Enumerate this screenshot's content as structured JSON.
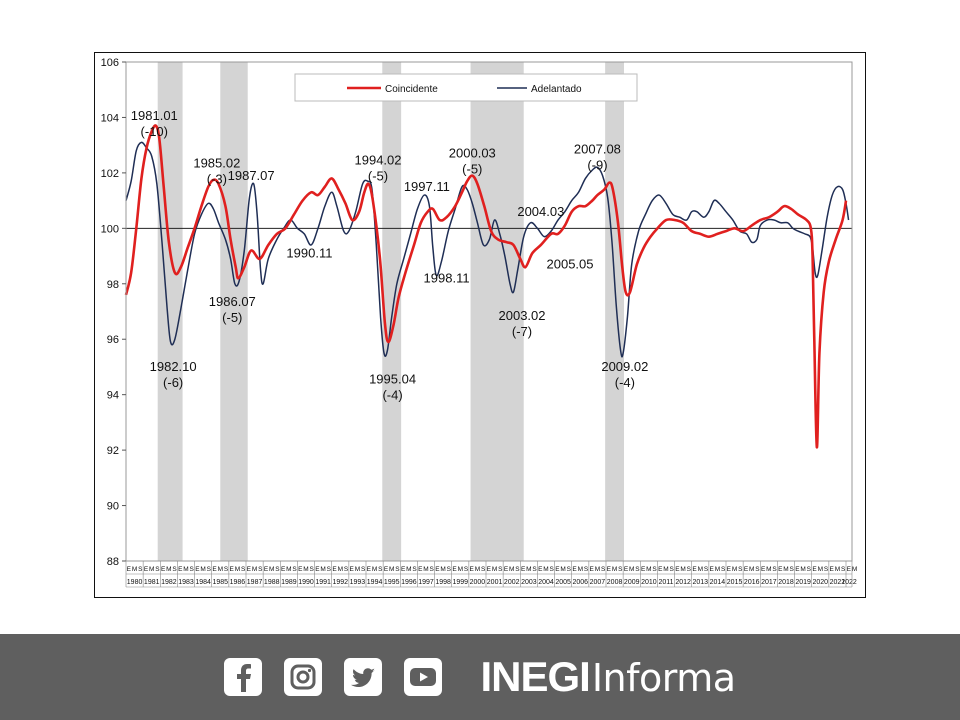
{
  "chart_data": {
    "type": "line",
    "ylim": [
      88,
      106
    ],
    "yticks": [
      88,
      90,
      92,
      94,
      96,
      98,
      100,
      102,
      104,
      106
    ],
    "baseline": 100,
    "x_years": [
      "1980",
      "1981",
      "1982",
      "1983",
      "1984",
      "1985",
      "1986",
      "1987",
      "1988",
      "1989",
      "1990",
      "1991",
      "1992",
      "1993",
      "1994",
      "1995",
      "1996",
      "1997",
      "1998",
      "1999",
      "2000",
      "2001",
      "2002",
      "2003",
      "2004",
      "2005",
      "2006",
      "2007",
      "2008",
      "2009",
      "2010",
      "2011",
      "2012",
      "2013",
      "2014",
      "2015",
      "2016",
      "2017",
      "2018",
      "2019",
      "2020",
      "2021",
      "2022"
    ],
    "x_subticks": [
      "E",
      "M",
      "S"
    ],
    "last_year_subticks": [
      "E",
      "M"
    ],
    "legend": {
      "position": "top-center"
    },
    "recession_bands": [
      {
        "start": 1981.85,
        "end": 1983.3
      },
      {
        "start": 1985.5,
        "end": 1987.1
      },
      {
        "start": 1994.95,
        "end": 1996.05
      },
      {
        "start": 2000.1,
        "end": 2003.2
      },
      {
        "start": 2007.95,
        "end": 2009.05
      }
    ],
    "series": [
      {
        "name": "Coincidente",
        "color": "#e0201f",
        "points": [
          [
            1980.0,
            97.6
          ],
          [
            1980.3,
            98.4
          ],
          [
            1980.6,
            100.0
          ],
          [
            1980.9,
            101.8
          ],
          [
            1981.2,
            102.9
          ],
          [
            1981.5,
            103.5
          ],
          [
            1981.75,
            103.7
          ],
          [
            1981.95,
            103.2
          ],
          [
            1982.2,
            101.5
          ],
          [
            1982.5,
            99.5
          ],
          [
            1982.85,
            98.4
          ],
          [
            1983.2,
            98.6
          ],
          [
            1983.6,
            99.3
          ],
          [
            1984.0,
            100.0
          ],
          [
            1984.4,
            100.8
          ],
          [
            1984.8,
            101.5
          ],
          [
            1985.1,
            101.75
          ],
          [
            1985.4,
            101.6
          ],
          [
            1985.8,
            100.8
          ],
          [
            1986.1,
            99.6
          ],
          [
            1986.4,
            98.6
          ],
          [
            1986.55,
            98.2
          ],
          [
            1986.9,
            98.6
          ],
          [
            1987.3,
            99.2
          ],
          [
            1987.8,
            98.9
          ],
          [
            1988.3,
            99.4
          ],
          [
            1988.8,
            99.8
          ],
          [
            1989.3,
            100.0
          ],
          [
            1989.8,
            100.5
          ],
          [
            1990.3,
            101.0
          ],
          [
            1990.8,
            101.3
          ],
          [
            1991.2,
            101.2
          ],
          [
            1991.6,
            101.5
          ],
          [
            1992.0,
            101.8
          ],
          [
            1992.4,
            101.4
          ],
          [
            1992.8,
            100.9
          ],
          [
            1993.2,
            100.3
          ],
          [
            1993.6,
            100.6
          ],
          [
            1993.9,
            101.3
          ],
          [
            1994.15,
            101.6
          ],
          [
            1994.4,
            101.0
          ],
          [
            1994.8,
            99.0
          ],
          [
            1995.1,
            96.6
          ],
          [
            1995.3,
            95.9
          ],
          [
            1995.6,
            96.5
          ],
          [
            1995.9,
            97.5
          ],
          [
            1996.3,
            98.4
          ],
          [
            1996.8,
            99.4
          ],
          [
            1997.2,
            100.2
          ],
          [
            1997.6,
            100.6
          ],
          [
            1997.9,
            100.7
          ],
          [
            1998.3,
            100.3
          ],
          [
            1998.7,
            100.4
          ],
          [
            1999.2,
            100.8
          ],
          [
            1999.6,
            101.3
          ],
          [
            1999.9,
            101.7
          ],
          [
            2000.2,
            101.9
          ],
          [
            2000.5,
            101.6
          ],
          [
            2000.9,
            100.8
          ],
          [
            2001.3,
            99.9
          ],
          [
            2001.7,
            99.6
          ],
          [
            2002.2,
            99.5
          ],
          [
            2002.6,
            99.4
          ],
          [
            2003.0,
            98.9
          ],
          [
            2003.3,
            98.6
          ],
          [
            2003.7,
            99.1
          ],
          [
            2004.2,
            99.4
          ],
          [
            2004.8,
            99.8
          ],
          [
            2005.2,
            99.8
          ],
          [
            2005.6,
            100.1
          ],
          [
            2006.0,
            100.6
          ],
          [
            2006.4,
            100.8
          ],
          [
            2006.8,
            100.8
          ],
          [
            2007.2,
            101.0
          ],
          [
            2007.5,
            101.2
          ],
          [
            2007.9,
            101.4
          ],
          [
            2008.2,
            101.65
          ],
          [
            2008.4,
            101.4
          ],
          [
            2008.7,
            100.2
          ],
          [
            2008.95,
            98.6
          ],
          [
            2009.15,
            97.7
          ],
          [
            2009.4,
            97.7
          ],
          [
            2009.8,
            98.7
          ],
          [
            2010.2,
            99.3
          ],
          [
            2010.6,
            99.7
          ],
          [
            2011.0,
            100.0
          ],
          [
            2011.5,
            100.3
          ],
          [
            2012.0,
            100.3
          ],
          [
            2012.5,
            100.2
          ],
          [
            2013.0,
            99.9
          ],
          [
            2013.5,
            99.8
          ],
          [
            2014.0,
            99.7
          ],
          [
            2014.5,
            99.8
          ],
          [
            2015.0,
            99.9
          ],
          [
            2015.5,
            100.0
          ],
          [
            2016.0,
            99.9
          ],
          [
            2016.5,
            100.1
          ],
          [
            2017.0,
            100.3
          ],
          [
            2017.5,
            100.4
          ],
          [
            2018.0,
            100.6
          ],
          [
            2018.4,
            100.8
          ],
          [
            2018.8,
            100.7
          ],
          [
            2019.2,
            100.5
          ],
          [
            2019.7,
            100.3
          ],
          [
            2019.95,
            100.0
          ],
          [
            2020.05,
            99.0
          ],
          [
            2020.15,
            96.0
          ],
          [
            2020.3,
            92.1
          ],
          [
            2020.45,
            95.5
          ],
          [
            2020.7,
            97.7
          ],
          [
            2021.0,
            98.8
          ],
          [
            2021.4,
            99.6
          ],
          [
            2021.8,
            100.3
          ],
          [
            2022.0,
            101.0
          ]
        ]
      },
      {
        "name": "Adelantado",
        "color": "#1f2e55",
        "points": [
          [
            1980.0,
            101.0
          ],
          [
            1980.3,
            101.7
          ],
          [
            1980.6,
            102.8
          ],
          [
            1980.9,
            103.1
          ],
          [
            1981.2,
            102.9
          ],
          [
            1981.5,
            102.6
          ],
          [
            1981.8,
            101.6
          ],
          [
            1982.1,
            99.5
          ],
          [
            1982.4,
            97.1
          ],
          [
            1982.6,
            95.9
          ],
          [
            1982.85,
            96.0
          ],
          [
            1983.2,
            97.1
          ],
          [
            1983.6,
            98.5
          ],
          [
            1984.0,
            99.8
          ],
          [
            1984.4,
            100.5
          ],
          [
            1984.8,
            100.9
          ],
          [
            1985.1,
            100.7
          ],
          [
            1985.4,
            100.2
          ],
          [
            1985.8,
            99.6
          ],
          [
            1986.1,
            98.9
          ],
          [
            1986.35,
            98.0
          ],
          [
            1986.6,
            98.1
          ],
          [
            1986.9,
            99.2
          ],
          [
            1987.2,
            101.1
          ],
          [
            1987.45,
            101.6
          ],
          [
            1987.65,
            100.5
          ],
          [
            1987.85,
            98.5
          ],
          [
            1988.0,
            98.0
          ],
          [
            1988.3,
            98.9
          ],
          [
            1988.8,
            99.6
          ],
          [
            1989.2,
            100.0
          ],
          [
            1989.6,
            100.3
          ],
          [
            1990.0,
            100.0
          ],
          [
            1990.4,
            99.8
          ],
          [
            1990.8,
            99.4
          ],
          [
            1991.2,
            100.0
          ],
          [
            1991.6,
            100.8
          ],
          [
            1992.0,
            101.3
          ],
          [
            1992.3,
            100.8
          ],
          [
            1992.7,
            99.9
          ],
          [
            1993.0,
            99.9
          ],
          [
            1993.4,
            100.6
          ],
          [
            1993.8,
            101.6
          ],
          [
            1994.1,
            101.7
          ],
          [
            1994.35,
            101.4
          ],
          [
            1994.6,
            99.4
          ],
          [
            1994.85,
            96.8
          ],
          [
            1995.05,
            95.5
          ],
          [
            1995.25,
            95.6
          ],
          [
            1995.5,
            96.8
          ],
          [
            1995.8,
            98.0
          ],
          [
            1996.2,
            98.9
          ],
          [
            1996.6,
            99.8
          ],
          [
            1997.0,
            100.7
          ],
          [
            1997.4,
            101.2
          ],
          [
            1997.7,
            100.8
          ],
          [
            1997.9,
            99.3
          ],
          [
            1998.1,
            98.3
          ],
          [
            1998.4,
            98.8
          ],
          [
            1998.8,
            99.9
          ],
          [
            1999.2,
            100.7
          ],
          [
            1999.6,
            101.5
          ],
          [
            1999.9,
            101.4
          ],
          [
            2000.2,
            100.9
          ],
          [
            2000.5,
            100.2
          ],
          [
            2000.85,
            99.4
          ],
          [
            2001.2,
            99.6
          ],
          [
            2001.5,
            100.3
          ],
          [
            2001.8,
            99.8
          ],
          [
            2002.1,
            99.0
          ],
          [
            2002.4,
            98.0
          ],
          [
            2002.6,
            97.7
          ],
          [
            2002.85,
            98.5
          ],
          [
            2003.2,
            99.7
          ],
          [
            2003.6,
            100.2
          ],
          [
            2004.0,
            100.0
          ],
          [
            2004.4,
            99.7
          ],
          [
            2004.8,
            99.9
          ],
          [
            2005.2,
            100.3
          ],
          [
            2005.6,
            100.6
          ],
          [
            2006.0,
            101.0
          ],
          [
            2006.4,
            101.3
          ],
          [
            2006.8,
            101.8
          ],
          [
            2007.2,
            102.1
          ],
          [
            2007.5,
            102.2
          ],
          [
            2007.8,
            101.9
          ],
          [
            2008.1,
            101.1
          ],
          [
            2008.35,
            99.5
          ],
          [
            2008.6,
            97.2
          ],
          [
            2008.85,
            95.6
          ],
          [
            2009.0,
            95.5
          ],
          [
            2009.25,
            96.8
          ],
          [
            2009.5,
            98.7
          ],
          [
            2009.9,
            99.9
          ],
          [
            2010.3,
            100.5
          ],
          [
            2010.7,
            101.0
          ],
          [
            2011.1,
            101.2
          ],
          [
            2011.5,
            100.9
          ],
          [
            2011.9,
            100.5
          ],
          [
            2012.3,
            100.4
          ],
          [
            2012.7,
            100.3
          ],
          [
            2013.0,
            100.6
          ],
          [
            2013.3,
            100.6
          ],
          [
            2013.7,
            100.4
          ],
          [
            2014.0,
            100.6
          ],
          [
            2014.3,
            101.0
          ],
          [
            2014.6,
            100.9
          ],
          [
            2015.0,
            100.6
          ],
          [
            2015.4,
            100.3
          ],
          [
            2015.8,
            99.9
          ],
          [
            2016.2,
            99.8
          ],
          [
            2016.5,
            99.5
          ],
          [
            2016.8,
            99.6
          ],
          [
            2017.0,
            100.1
          ],
          [
            2017.4,
            100.3
          ],
          [
            2017.8,
            100.3
          ],
          [
            2018.2,
            100.2
          ],
          [
            2018.6,
            100.2
          ],
          [
            2018.9,
            100.0
          ],
          [
            2019.2,
            99.9
          ],
          [
            2019.6,
            99.8
          ],
          [
            2019.9,
            99.7
          ],
          [
            2020.05,
            99.3
          ],
          [
            2020.2,
            98.4
          ],
          [
            2020.35,
            98.3
          ],
          [
            2020.6,
            99.2
          ],
          [
            2020.9,
            100.4
          ],
          [
            2021.2,
            101.2
          ],
          [
            2021.5,
            101.5
          ],
          [
            2021.8,
            101.4
          ],
          [
            2022.0,
            100.9
          ],
          [
            2022.15,
            100.3
          ]
        ]
      }
    ],
    "annotations": [
      {
        "lines": [
          "1981.01",
          "(-10)"
        ],
        "x": 1981.65,
        "y": 103.9
      },
      {
        "lines": [
          "1982.10",
          "(-6)"
        ],
        "x": 1982.75,
        "y": 94.85
      },
      {
        "lines": [
          "1985.02",
          "(-3)"
        ],
        "x": 1985.3,
        "y": 102.2
      },
      {
        "lines": [
          "1987.07"
        ],
        "x": 1987.3,
        "y": 101.75
      },
      {
        "lines": [
          "1986.07",
          "(-5)"
        ],
        "x": 1986.2,
        "y": 97.2
      },
      {
        "lines": [
          "1990.11"
        ],
        "x": 1990.7,
        "y": 98.95
      },
      {
        "lines": [
          "1994.02",
          "(-5)"
        ],
        "x": 1994.7,
        "y": 102.3
      },
      {
        "lines": [
          "1995.04",
          "(-4)"
        ],
        "x": 1995.55,
        "y": 94.4
      },
      {
        "lines": [
          "1997.11"
        ],
        "x": 1997.55,
        "y": 101.35
      },
      {
        "lines": [
          "1998.11"
        ],
        "x": 1998.7,
        "y": 98.05
      },
      {
        "lines": [
          "2000.03",
          "(-5)"
        ],
        "x": 2000.2,
        "y": 102.55
      },
      {
        "lines": [
          "2004.03"
        ],
        "x": 2004.2,
        "y": 100.45
      },
      {
        "lines": [
          "2003.02",
          "(-7)"
        ],
        "x": 2003.1,
        "y": 96.7
      },
      {
        "lines": [
          "2005.05"
        ],
        "x": 2005.9,
        "y": 98.55
      },
      {
        "lines": [
          "2007.08",
          "(-9)"
        ],
        "x": 2007.5,
        "y": 102.7
      },
      {
        "lines": [
          "2009.02",
          "(-4)"
        ],
        "x": 2009.1,
        "y": 94.85
      }
    ]
  },
  "footer": {
    "social_icons": [
      "facebook-icon",
      "instagram-icon",
      "twitter-icon",
      "youtube-icon"
    ],
    "brand_strong": "INEGI",
    "brand_light": "Informa",
    "background": "#5f5f5f"
  }
}
